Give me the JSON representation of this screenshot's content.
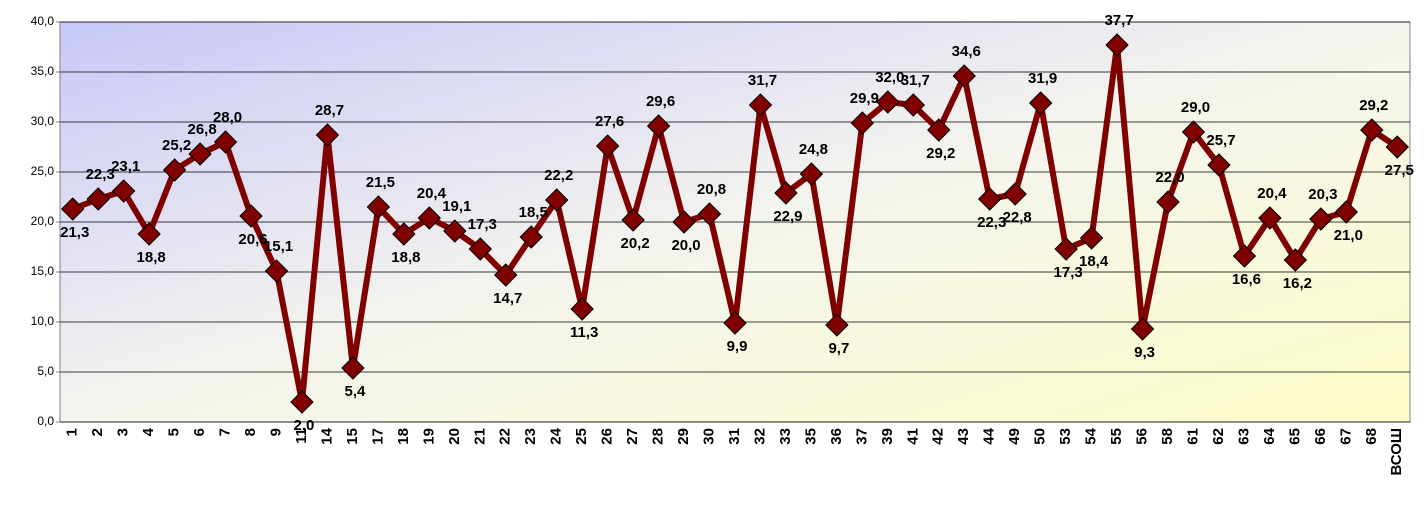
{
  "chart_data": {
    "type": "line",
    "categories": [
      "1",
      "2",
      "3",
      "4",
      "5",
      "6",
      "7",
      "8",
      "9",
      "11",
      "14",
      "15",
      "17",
      "18",
      "19",
      "20",
      "21",
      "22",
      "23",
      "24",
      "25",
      "26",
      "27",
      "28",
      "29",
      "30",
      "31",
      "32",
      "33",
      "35",
      "36",
      "37",
      "39",
      "41",
      "42",
      "43",
      "44",
      "49",
      "50",
      "53",
      "54",
      "55",
      "56",
      "58",
      "61",
      "62",
      "63",
      "64",
      "65",
      "66",
      "67",
      "68",
      "ВСОШ"
    ],
    "values": [
      21.3,
      22.3,
      23.1,
      18.8,
      25.2,
      26.8,
      28.0,
      20.6,
      15.1,
      2.0,
      28.7,
      5.4,
      21.5,
      18.8,
      20.4,
      19.1,
      17.3,
      14.7,
      18.5,
      22.2,
      11.3,
      27.6,
      20.2,
      29.6,
      20.0,
      20.8,
      9.9,
      31.7,
      22.9,
      24.8,
      9.7,
      29.9,
      32.0,
      31.7,
      29.2,
      34.6,
      22.3,
      22.8,
      31.9,
      17.3,
      18.4,
      37.7,
      9.3,
      22.0,
      29.0,
      25.7,
      16.6,
      20.4,
      16.2,
      20.3,
      21.0,
      29.2,
      27.5
    ],
    "value_labels": [
      "21,3",
      "22,3",
      "23,1",
      "18,8",
      "25,2",
      "26,8",
      "28,0",
      "20,6",
      "15,1",
      "2,0",
      "28,7",
      "5,4",
      "21,5",
      "18,8",
      "20,4",
      "19,1",
      "17,3",
      "14,7",
      "18,5",
      "22,2",
      "11,3",
      "27,6",
      "20,2",
      "29,6",
      "20,0",
      "20,8",
      "9,9",
      "31,7",
      "22,9",
      "24,8",
      "9,7",
      "29,9",
      "32,0",
      "31,7",
      "29,2",
      "34,6",
      "22,3",
      "22,8",
      "31,9",
      "17,3",
      "18,4",
      "37,7",
      "9,3",
      "22,0",
      "29,0",
      "25,7",
      "16,6",
      "20,4",
      "16,2",
      "20,3",
      "21,0",
      "29,2",
      "27,5"
    ],
    "color": "#800000",
    "ylim": [
      0,
      40
    ],
    "yticks": [
      {
        "value": 0,
        "label": "0,0"
      },
      {
        "value": 5,
        "label": "5,0"
      },
      {
        "value": 10,
        "label": "10,0"
      },
      {
        "value": 15,
        "label": "15,0"
      },
      {
        "value": 20,
        "label": "20,0"
      },
      {
        "value": 25,
        "label": "25,0"
      },
      {
        "value": 30,
        "label": "30,0"
      },
      {
        "value": 35,
        "label": "35,0"
      },
      {
        "value": 40,
        "label": "40,0"
      }
    ],
    "grid": true
  }
}
